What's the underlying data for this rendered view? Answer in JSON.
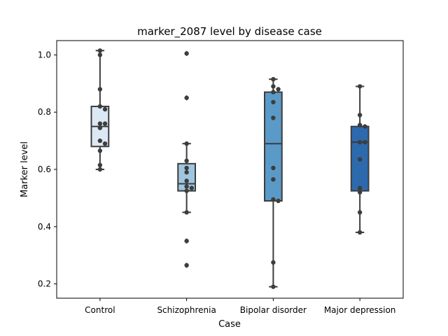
{
  "chart_data": {
    "type": "box",
    "title": "marker_2087 level by disease case",
    "xlabel": "Case",
    "ylabel": "Marker level",
    "ylim": [
      0.15,
      1.05
    ],
    "yticks": [
      "0.2",
      "0.4",
      "0.6",
      "0.8",
      "1.0"
    ],
    "categories": [
      "Control",
      "Schizophrenia",
      "Bipolar disorder",
      "Major depression"
    ],
    "box_colors": [
      "#dce9f5",
      "#9fc6df",
      "#5a9ac9",
      "#2c6aad"
    ],
    "boxes": [
      {
        "name": "Control",
        "whisker_low": 0.6,
        "q1": 0.68,
        "median": 0.75,
        "q3": 0.82,
        "whisker_high": 1.015,
        "fliers": []
      },
      {
        "name": "Schizophrenia",
        "whisker_low": 0.45,
        "q1": 0.525,
        "median": 0.55,
        "q3": 0.62,
        "whisker_high": 0.69,
        "fliers": [
          1.005,
          0.85,
          0.35,
          0.265
        ]
      },
      {
        "name": "Bipolar disorder",
        "whisker_low": 0.19,
        "q1": 0.49,
        "median": 0.69,
        "q3": 0.87,
        "whisker_high": 0.915,
        "fliers": []
      },
      {
        "name": "Major depression",
        "whisker_low": 0.38,
        "q1": 0.525,
        "median": 0.695,
        "q3": 0.75,
        "whisker_high": 0.89,
        "fliers": []
      }
    ],
    "points": [
      [
        1.015,
        1.0,
        0.88,
        0.82,
        0.81,
        0.76,
        0.76,
        0.745,
        0.7,
        0.69,
        0.665,
        0.615,
        0.6
      ],
      [
        1.005,
        0.85,
        0.69,
        0.63,
        0.605,
        0.59,
        0.56,
        0.54,
        0.535,
        0.525,
        0.45,
        0.35,
        0.265
      ],
      [
        0.915,
        0.89,
        0.88,
        0.87,
        0.835,
        0.78,
        0.605,
        0.565,
        0.495,
        0.49,
        0.275,
        0.19
      ],
      [
        0.89,
        0.79,
        0.755,
        0.75,
        0.695,
        0.695,
        0.635,
        0.535,
        0.52,
        0.45,
        0.38
      ]
    ]
  }
}
